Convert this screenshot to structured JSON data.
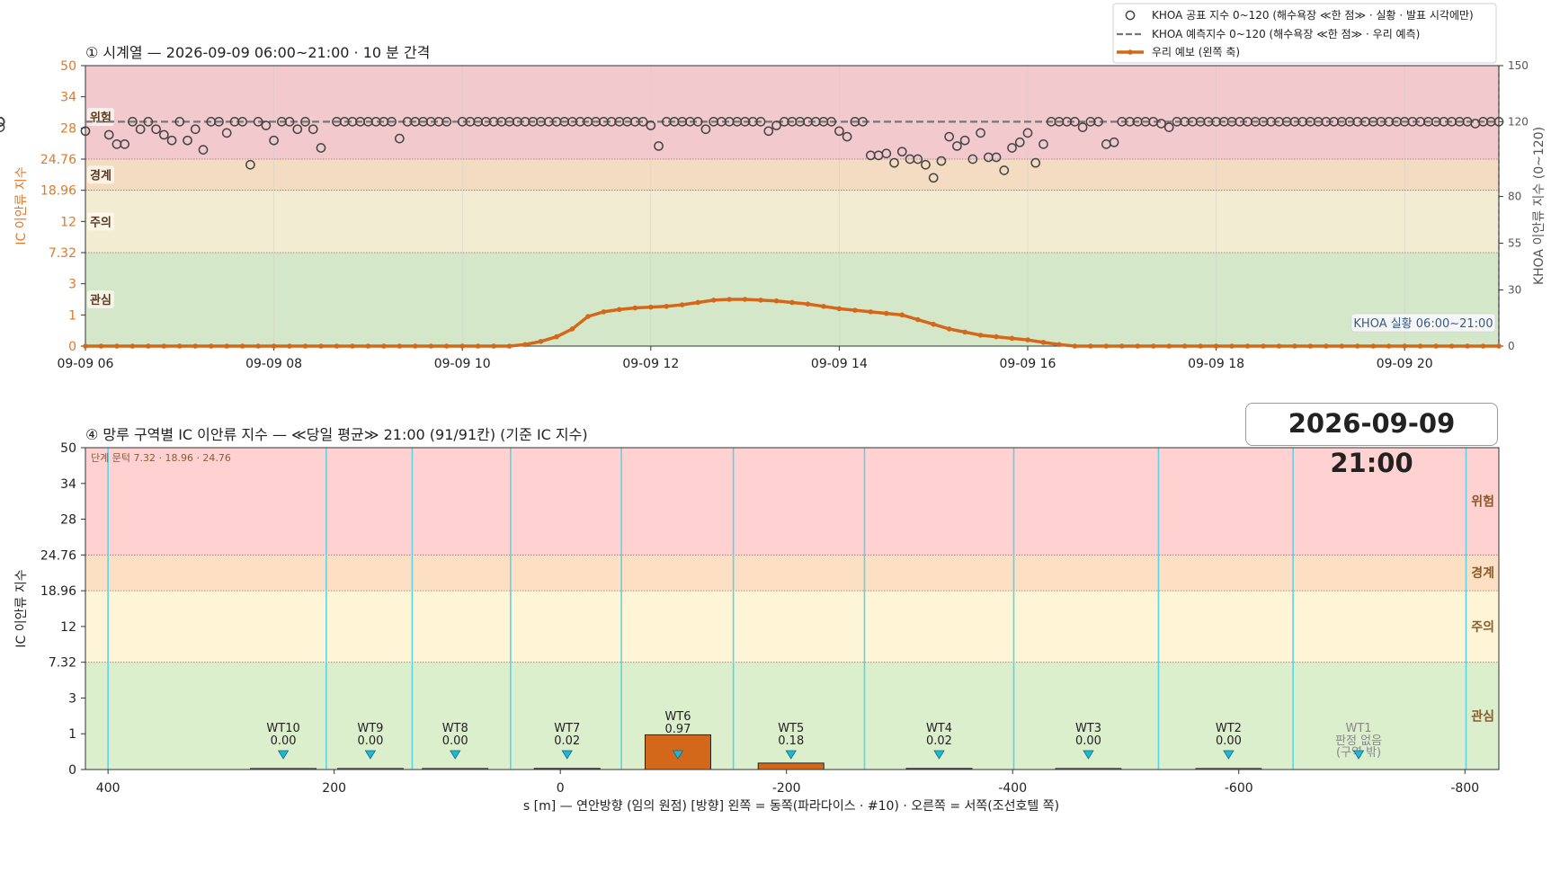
{
  "colors": {
    "danger": "#f2c9cd",
    "warning": "#f3dcc2",
    "caution": "#f1ecd2",
    "interest": "#d4e8c9",
    "danger2": "#ffd1d0",
    "warning2": "#fde0c3",
    "caution2": "#fdf5d5",
    "interest2": "#dcefcc",
    "orange": "#d4681a",
    "khoa_dash": "#777777",
    "accent_label": "#e0782a",
    "zone_line": "#5fd3e6",
    "tri": "#22b5d6"
  },
  "timestamp_badge": "2026-09-09  21:00",
  "legend": {
    "items": [
      "KHOA 공표 지수 0~120 (해수욕장 ≪한 점≫ · 실황 · 발표 시각에만)",
      "KHOA 예측지수 0~120 (해수욕장 ≪한 점≫ · 우리 예측)",
      "우리 예보 (왼쪽 축)"
    ]
  },
  "chart_data": [
    {
      "type": "line",
      "title": "① 시계열 — 2026-09-09 06:00~21:00 · 10 분 간격",
      "ylabel": "IC 이안류 지수",
      "y2label": "KHOA 이안류 지수 (0~120)",
      "y_ticks": [
        "0",
        "1",
        "3",
        "7.32",
        "12",
        "18.96",
        "24.76",
        "28",
        "34",
        "50"
      ],
      "y2_ticks": [
        "0",
        "30",
        "55",
        "80",
        "120",
        "150"
      ],
      "x_ticks": [
        "09-09 06",
        "09-09 08",
        "09-09 10",
        "09-09 12",
        "09-09 14",
        "09-09 16",
        "09-09 18",
        "09-09 20"
      ],
      "bands": [
        "위험",
        "경계",
        "주의",
        "관심"
      ],
      "annotation": "KHOA 실황 06:00~21:00",
      "khoa_forecast_value": 120,
      "x_minutes": [
        0,
        10,
        20,
        30,
        40,
        50,
        60,
        70,
        80,
        90,
        100,
        110,
        120,
        130,
        140,
        150,
        160,
        170,
        180,
        190,
        200,
        210,
        220,
        230,
        240,
        250,
        260,
        270,
        280,
        290,
        300,
        310,
        320,
        330,
        340,
        350,
        360,
        370,
        380,
        390,
        400,
        410,
        420,
        430,
        440,
        450,
        460,
        470,
        480,
        490,
        500,
        510,
        520,
        530,
        540,
        550,
        560,
        570,
        580,
        590,
        600,
        610,
        620,
        630,
        640,
        650,
        660,
        670,
        680,
        690,
        700,
        710,
        720,
        730,
        740,
        750,
        760,
        770,
        780,
        790,
        800,
        810,
        820,
        830,
        840,
        850,
        860,
        870,
        880,
        890,
        900
      ],
      "forecast": [
        0,
        0,
        0,
        0,
        0,
        0,
        0,
        0,
        0,
        0,
        0,
        0,
        0,
        0,
        0,
        0,
        0,
        0,
        0,
        0,
        0,
        0,
        0,
        0,
        0,
        0,
        0,
        0,
        0.05,
        0.15,
        0.3,
        0.55,
        0.95,
        1.2,
        1.35,
        1.45,
        1.5,
        1.55,
        1.65,
        1.8,
        1.95,
        2.0,
        2.0,
        1.95,
        1.9,
        1.8,
        1.7,
        1.55,
        1.4,
        1.3,
        1.2,
        1.1,
        1.0,
        0.85,
        0.7,
        0.55,
        0.45,
        0.35,
        0.3,
        0.25,
        0.2,
        0.12,
        0.05,
        0,
        0,
        0,
        0,
        0,
        0,
        0,
        0,
        0,
        0,
        0,
        0,
        0,
        0,
        0,
        0,
        0,
        0,
        0,
        0,
        0,
        0,
        0,
        0,
        0,
        0,
        0,
        0
      ],
      "khoa_obs_x": [
        0,
        15,
        20,
        25,
        30,
        35,
        40,
        45,
        50,
        55,
        60,
        65,
        70,
        75,
        80,
        85,
        90,
        95,
        100,
        105,
        110,
        115,
        120,
        125,
        130,
        135,
        140,
        145,
        150,
        160,
        165,
        170,
        175,
        180,
        185,
        190,
        195,
        200,
        205,
        210,
        215,
        220,
        225,
        230,
        240,
        245,
        250,
        255,
        260,
        265,
        270,
        275,
        280,
        285,
        290,
        295,
        300,
        305,
        310,
        315,
        320,
        325,
        330,
        335,
        340,
        345,
        350,
        355,
        360,
        365,
        370,
        375,
        380,
        385,
        390,
        395,
        400,
        405,
        410,
        415,
        420,
        425,
        430,
        435,
        440,
        445,
        450,
        455,
        460,
        465,
        470,
        475,
        480,
        485,
        490,
        495,
        500,
        505,
        510,
        515,
        520,
        525,
        530,
        535,
        540,
        545,
        550,
        555,
        560,
        565,
        570,
        575,
        580,
        585,
        590,
        595,
        600,
        605,
        610,
        615,
        620,
        625,
        630,
        635,
        640,
        645,
        650,
        655,
        660,
        665,
        670,
        675,
        680,
        685,
        690,
        695,
        700,
        705,
        710,
        715,
        720,
        725,
        730,
        735,
        740,
        745,
        750,
        755,
        760,
        765,
        770,
        775,
        780,
        785,
        790,
        795,
        800,
        805,
        810,
        815,
        820,
        825,
        830,
        835,
        840,
        845,
        850,
        855,
        860,
        865,
        870,
        875,
        880,
        885,
        890,
        895,
        900
      ],
      "khoa_obs": [
        115,
        113,
        108,
        108,
        120,
        116,
        120,
        116,
        113,
        110,
        120,
        110,
        116,
        105,
        120,
        120,
        114,
        120,
        120,
        97,
        120,
        118,
        110,
        120,
        120,
        116,
        120,
        116,
        106,
        120,
        120,
        120,
        120,
        120,
        120,
        120,
        120,
        111,
        120,
        120,
        120,
        120,
        120,
        120,
        120,
        120,
        120,
        120,
        120,
        120,
        120,
        120,
        120,
        120,
        120,
        120,
        120,
        120,
        120,
        120,
        120,
        120,
        120,
        120,
        120,
        120,
        120,
        120,
        118,
        107,
        120,
        120,
        120,
        120,
        120,
        116,
        120,
        120,
        120,
        120,
        120,
        120,
        120,
        115,
        118,
        120,
        120,
        120,
        120,
        120,
        120,
        120,
        115,
        112,
        120,
        120,
        102,
        102,
        103,
        98,
        104,
        100,
        100,
        97,
        90,
        99,
        112,
        107,
        110,
        100,
        114,
        101,
        101,
        94,
        106,
        109,
        114,
        98,
        108,
        120,
        120,
        120,
        120,
        117,
        120,
        120,
        108,
        109,
        120,
        120,
        120,
        120,
        120,
        119,
        117,
        120,
        120,
        120,
        120,
        120,
        120,
        120,
        120,
        120,
        120,
        120,
        120,
        120,
        120,
        120,
        120,
        120,
        120,
        120,
        120,
        120,
        120,
        120,
        120,
        120,
        120,
        120,
        120,
        120,
        120,
        120,
        120,
        120,
        120,
        120,
        120,
        120,
        120,
        119,
        120,
        120,
        120,
        120,
        120,
        120,
        117,
        120,
        120,
        120,
        120
      ]
    },
    {
      "type": "bar",
      "title": "④ 망루 구역별 IC 이안류 지수 — ≪당일 평균≫ 21:00  (91/91칸)   (기준 IC 지수)",
      "xlabel": "s [m] — 연안방향 (임의 원점)     [방향] 왼쪽 = 동쪽(파라다이스 · #10) · 오른쪽 = 서쪽(조선호텔 쪽)",
      "ylabel": "IC 이안류 지수",
      "threshold_note": "단계 문턱 7.32 · 18.96 · 24.76",
      "y_ticks": [
        "0",
        "1",
        "3",
        "7.32",
        "12",
        "18.96",
        "24.76",
        "28",
        "34",
        "50"
      ],
      "x_ticks": [
        "400",
        "200",
        "0",
        "-200",
        "-400",
        "-600",
        "-800"
      ],
      "xlim": [
        420,
        -830
      ],
      "bands": [
        "위험",
        "경계",
        "주의",
        "관심"
      ],
      "zone_boundaries": [
        400,
        207,
        131,
        44,
        -54,
        -153,
        -269,
        -401,
        -529,
        -648,
        -801
      ],
      "zones": [
        {
          "name": "WT10",
          "value": "0.00",
          "x": 245,
          "bar": 0.0
        },
        {
          "name": "WT9",
          "value": "0.00",
          "x": 168,
          "bar": 0.0
        },
        {
          "name": "WT8",
          "value": "0.00",
          "x": 93,
          "bar": 0.0
        },
        {
          "name": "WT7",
          "value": "0.02",
          "x": -6,
          "bar": 0.02
        },
        {
          "name": "WT6",
          "value": "0.97",
          "x": -104,
          "bar": 0.97
        },
        {
          "name": "WT5",
          "value": "0.18",
          "x": -204,
          "bar": 0.18
        },
        {
          "name": "WT4",
          "value": "0.02",
          "x": -335,
          "bar": 0.02
        },
        {
          "name": "WT3",
          "value": "0.00",
          "x": -467,
          "bar": 0.0
        },
        {
          "name": "WT2",
          "value": "0.00",
          "x": -591,
          "bar": 0.0
        },
        {
          "name": "WT1",
          "value": "판정 없음\n(구역 밖)",
          "x": -706,
          "bar": null
        }
      ]
    }
  ]
}
